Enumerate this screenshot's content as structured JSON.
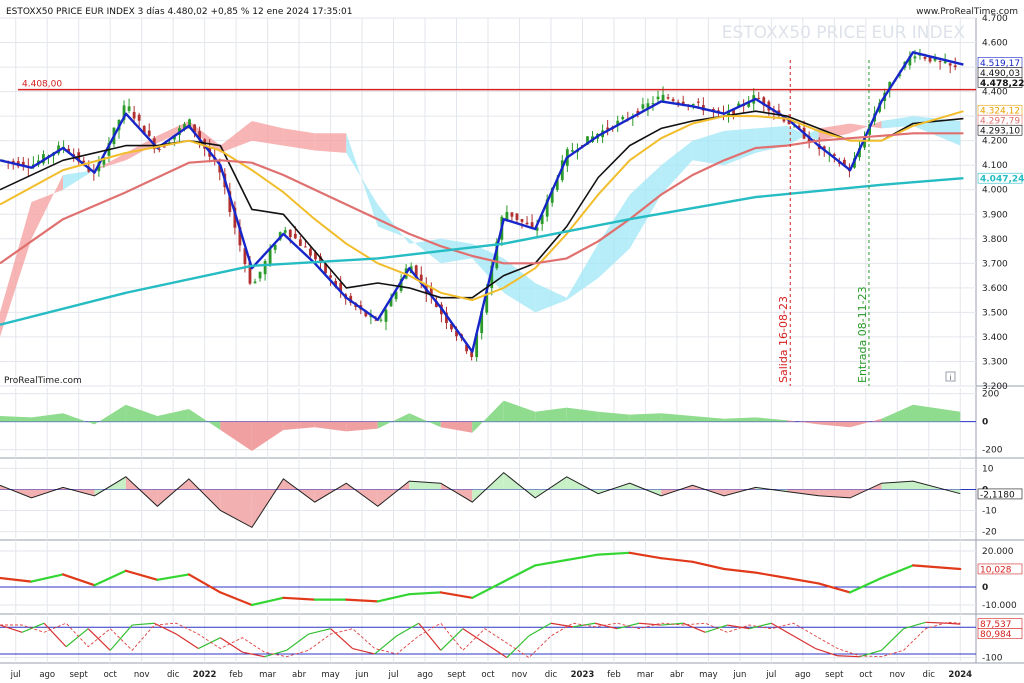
{
  "header": {
    "title": "ESTOXX50 PRICE EUR INDEX 3 días 4.480,02 +0,85 % 12 ene 2024 17:35:01",
    "brand": "www.ProRealTime.com",
    "watermark": "ESTOXX50 PRICE EUR INDEX",
    "chart_brand": "ProRealTime.com"
  },
  "chart_data": [
    {
      "type": "line",
      "pane": "price",
      "ylim": [
        3200,
        4700
      ],
      "y_ticks": [
        "3.200",
        "3.300",
        "3.400",
        "3.500",
        "3.600",
        "3.700",
        "3.800",
        "3.900",
        "4.000",
        "4.100",
        "4.200",
        "4.300",
        "4.400",
        "4.500",
        "4.600",
        "4.700"
      ],
      "y_tick_values": [
        3200,
        3300,
        3400,
        3500,
        3600,
        3700,
        3800,
        3900,
        4000,
        4100,
        4200,
        4300,
        4400,
        4500,
        4600,
        4700
      ],
      "x_range_months": [
        0,
        31
      ],
      "x_ticks": [
        {
          "label": "jul",
          "m": 0.5
        },
        {
          "label": "ago",
          "m": 1.5
        },
        {
          "label": "sept",
          "m": 2.5
        },
        {
          "label": "oct",
          "m": 3.5
        },
        {
          "label": "nov",
          "m": 4.5
        },
        {
          "label": "dic",
          "m": 5.5
        },
        {
          "label": "2022",
          "m": 6.5,
          "bold": true
        },
        {
          "label": "feb",
          "m": 7.5
        },
        {
          "label": "mar",
          "m": 8.5
        },
        {
          "label": "abr",
          "m": 9.5
        },
        {
          "label": "may",
          "m": 10.5
        },
        {
          "label": "jun",
          "m": 11.5
        },
        {
          "label": "jul",
          "m": 12.5
        },
        {
          "label": "ago",
          "m": 13.5
        },
        {
          "label": "sept",
          "m": 14.5
        },
        {
          "label": "oct",
          "m": 15.5
        },
        {
          "label": "nov",
          "m": 16.5
        },
        {
          "label": "dic",
          "m": 17.5
        },
        {
          "label": "2023",
          "m": 18.5,
          "bold": true
        },
        {
          "label": "feb",
          "m": 19.5
        },
        {
          "label": "mar",
          "m": 20.5
        },
        {
          "label": "abr",
          "m": 21.5
        },
        {
          "label": "may",
          "m": 22.5
        },
        {
          "label": "jun",
          "m": 23.5
        },
        {
          "label": "jul",
          "m": 24.5
        },
        {
          "label": "ago",
          "m": 25.5
        },
        {
          "label": "sept",
          "m": 26.5
        },
        {
          "label": "oct",
          "m": 27.5
        },
        {
          "label": "nov",
          "m": 28.5
        },
        {
          "label": "dic",
          "m": 29.5
        },
        {
          "label": "2024",
          "m": 30.5,
          "bold": true
        }
      ],
      "close": {
        "x": [
          0,
          1,
          2,
          3,
          4,
          5,
          6,
          7,
          8,
          9,
          10,
          11,
          12,
          13,
          14,
          15,
          16,
          17,
          18,
          19,
          20,
          21,
          22,
          23,
          24,
          25,
          26,
          27,
          28,
          29,
          30.6
        ],
        "y": [
          4120,
          4100,
          4180,
          4060,
          4350,
          4160,
          4280,
          4060,
          3600,
          3850,
          3720,
          3550,
          3450,
          3700,
          3500,
          3320,
          3920,
          3830,
          4150,
          4230,
          4300,
          4380,
          4350,
          4300,
          4380,
          4280,
          4170,
          4080,
          4380,
          4560,
          4480
        ]
      },
      "series": [
        {
          "name": "blue",
          "color": "#1726c8",
          "x": [
            0,
            1,
            2,
            3,
            4,
            5,
            6,
            7,
            8,
            9,
            10,
            11,
            12,
            13,
            14,
            15,
            16,
            17,
            18,
            19,
            20,
            21,
            22,
            23,
            24,
            25,
            26,
            27,
            28,
            29,
            30.6
          ],
          "y": [
            4120,
            4090,
            4170,
            4070,
            4310,
            4170,
            4260,
            4100,
            3680,
            3820,
            3700,
            3560,
            3470,
            3680,
            3520,
            3340,
            3880,
            3840,
            4130,
            4220,
            4290,
            4360,
            4340,
            4310,
            4370,
            4290,
            4180,
            4080,
            4360,
            4560,
            4510
          ]
        },
        {
          "name": "black",
          "color": "#111111",
          "x": [
            0,
            2,
            4,
            5,
            6,
            7,
            8,
            9,
            10,
            11,
            12,
            13,
            14,
            15,
            16,
            17,
            18,
            19,
            20,
            21,
            22,
            23,
            24,
            25,
            26,
            27,
            28,
            29,
            30.6
          ],
          "y": [
            4000,
            4120,
            4180,
            4180,
            4200,
            4180,
            3920,
            3900,
            3750,
            3600,
            3620,
            3600,
            3560,
            3560,
            3650,
            3700,
            3850,
            4050,
            4180,
            4250,
            4280,
            4300,
            4320,
            4300,
            4250,
            4200,
            4200,
            4270,
            4290
          ]
        },
        {
          "name": "yellow",
          "color": "#f2bd2b",
          "x": [
            0,
            2,
            4,
            6,
            7,
            8,
            9,
            10,
            11,
            12,
            13,
            14,
            15,
            16,
            17,
            18,
            19,
            20,
            21,
            22,
            23,
            24,
            25,
            26,
            27,
            28,
            29,
            30.6
          ],
          "y": [
            3940,
            4080,
            4150,
            4200,
            4160,
            4080,
            3990,
            3880,
            3780,
            3700,
            3650,
            3580,
            3550,
            3600,
            3680,
            3820,
            3980,
            4120,
            4210,
            4270,
            4300,
            4300,
            4290,
            4240,
            4200,
            4200,
            4260,
            4320
          ]
        },
        {
          "name": "salmon",
          "color": "#e07070",
          "x": [
            0,
            2,
            4,
            6,
            7,
            8,
            9,
            10,
            11,
            12,
            13,
            14,
            15,
            16,
            17,
            18,
            19,
            20,
            21,
            22,
            23,
            24,
            25,
            26,
            27,
            28,
            29,
            30.6
          ],
          "y": [
            3700,
            3880,
            3990,
            4110,
            4120,
            4110,
            4060,
            4000,
            3940,
            3880,
            3820,
            3770,
            3730,
            3700,
            3700,
            3720,
            3790,
            3880,
            3980,
            4060,
            4120,
            4170,
            4180,
            4200,
            4210,
            4220,
            4230,
            4230
          ]
        },
        {
          "name": "cyan",
          "color": "#26bcc4",
          "x": [
            0,
            4,
            8,
            12,
            16,
            20,
            24,
            28,
            30.6
          ],
          "y": [
            3450,
            3580,
            3690,
            3720,
            3780,
            3880,
            3970,
            4020,
            4047
          ]
        }
      ],
      "cloud": {
        "x": [
          0,
          1,
          2,
          3,
          4,
          5,
          6,
          7,
          8,
          9,
          10,
          11,
          12,
          13,
          14,
          15,
          16,
          17,
          18,
          19,
          20,
          21,
          22,
          23,
          24,
          25,
          26,
          27,
          28,
          29,
          30.5
        ],
        "span_a": [
          3400,
          3800,
          4060,
          4080,
          4120,
          4190,
          4250,
          4150,
          4200,
          4180,
          4160,
          4150,
          3940,
          3780,
          3800,
          3780,
          3720,
          3620,
          3560,
          3780,
          3980,
          4100,
          4200,
          4240,
          4250,
          4260,
          4200,
          4230,
          4280,
          4300,
          4280
        ],
        "span_b": [
          3500,
          3950,
          4000,
          4080,
          4150,
          4220,
          4280,
          4180,
          4280,
          4250,
          4230,
          4230,
          3850,
          3800,
          3700,
          3720,
          3580,
          3500,
          3550,
          3640,
          3760,
          3980,
          4120,
          4100,
          4150,
          4180,
          4250,
          4270,
          4250,
          4260,
          4180
        ]
      },
      "resistance": {
        "value": 4408,
        "label": "4.408,00"
      },
      "vlines": [
        {
          "m": 25.1,
          "label": "Salida 16-08-23",
          "color": "#d62020"
        },
        {
          "m": 27.6,
          "label": "Entrada 08-11-23",
          "color": "#2a9a2a"
        }
      ],
      "price_tags": [
        {
          "value": 4519,
          "label": "4.519,17",
          "color": "#1726c8",
          "fill": "#ffffff"
        },
        {
          "value": 4490,
          "label": "4.490,03",
          "color": "#111111",
          "fill": "#ffffff"
        },
        {
          "value": 4478,
          "label": "4.478,22",
          "color": "#111111",
          "fill": "#ffffff",
          "bold": true
        },
        {
          "value": 4324,
          "label": "4.324,12",
          "color": "#e8a000",
          "fill": "#ffffff"
        },
        {
          "value": 4297,
          "label": "4.297,79",
          "color": "#e07070",
          "fill": "#ffffff"
        },
        {
          "value": 4293,
          "label": "4.293,10",
          "color": "#111111",
          "fill": "#ffffff"
        },
        {
          "value": 4047,
          "label": "4.047,24",
          "color": "#26bcc4",
          "fill": "#ffffff",
          "bold": true
        }
      ]
    },
    {
      "type": "area",
      "pane": "osc1",
      "ylim": [
        -260,
        240
      ],
      "y_ticks": [
        "200",
        "0",
        "-200"
      ],
      "y_tick_values": [
        200,
        0,
        -200
      ],
      "zero": 0,
      "x": [
        0,
        1,
        2,
        3,
        4,
        5,
        6,
        7,
        8,
        9,
        10,
        11,
        12,
        13,
        14,
        15,
        16,
        17,
        18,
        19,
        20,
        21,
        22,
        23,
        24,
        25,
        26,
        27,
        28,
        29,
        30.5
      ],
      "y": [
        40,
        30,
        60,
        -20,
        120,
        40,
        90,
        -60,
        -210,
        -60,
        -40,
        -70,
        -50,
        60,
        -40,
        -80,
        150,
        70,
        100,
        70,
        50,
        60,
        40,
        20,
        30,
        10,
        -20,
        -40,
        20,
        120,
        70
      ]
    },
    {
      "type": "area",
      "pane": "osc2",
      "ylim": [
        -24,
        14
      ],
      "y_ticks": [
        "10",
        "0",
        "-10",
        "-20"
      ],
      "y_tick_values": [
        10,
        0,
        -10,
        -20
      ],
      "zero": 0,
      "current": {
        "value": -2.118,
        "label": "-2,1180"
      },
      "x": [
        0,
        1,
        2,
        3,
        4,
        5,
        6,
        7,
        8,
        9,
        10,
        11,
        12,
        13,
        14,
        15,
        16,
        17,
        18,
        19,
        20,
        21,
        22,
        23,
        24,
        25,
        26,
        27,
        28,
        29,
        30.5
      ],
      "y": [
        2,
        -4,
        1,
        -3,
        6,
        -8,
        5,
        -10,
        -18,
        5,
        -6,
        3,
        -8,
        4,
        3,
        -6,
        8,
        -4,
        6,
        -2,
        3,
        -3,
        2,
        -3,
        1,
        -1,
        -3,
        -4,
        3,
        4,
        -2
      ]
    },
    {
      "type": "line",
      "pane": "osc3",
      "ylim": [
        -15000,
        25000
      ],
      "y_ticks": [
        "20.000",
        "0",
        "-10.000"
      ],
      "y_tick_values": [
        20000,
        0,
        -10000
      ],
      "zero": 0,
      "current": {
        "value": 10028,
        "label": "10,028"
      },
      "x": [
        0,
        1,
        2,
        3,
        4,
        5,
        6,
        7,
        8,
        9,
        10,
        11,
        12,
        13,
        14,
        15,
        16,
        17,
        18,
        19,
        20,
        21,
        22,
        23,
        24,
        25,
        26,
        27,
        28,
        29,
        30.5
      ],
      "y": [
        5000,
        3000,
        7000,
        1000,
        9000,
        4000,
        7000,
        -3000,
        -10000,
        -6000,
        -7000,
        -7000,
        -8000,
        -4000,
        -3000,
        -6000,
        3000,
        12000,
        15000,
        18000,
        19000,
        16000,
        14000,
        10000,
        8000,
        5000,
        2000,
        -3000,
        5000,
        12000,
        10000
      ]
    },
    {
      "type": "line",
      "pane": "osc4",
      "ylim": [
        -130,
        130
      ],
      "y_ticks": [
        "-100"
      ],
      "y_tick_values": [
        -100
      ],
      "zero": 0,
      "upper": 67.5,
      "lower": -80,
      "current": [
        {
          "value": 87.537,
          "label": "87,537",
          "color": "#d62020"
        },
        {
          "value": 80.984,
          "label": "80,984",
          "color": "#d62020"
        }
      ],
      "x": [
        0,
        0.7,
        1.4,
        2.1,
        2.8,
        3.5,
        4.2,
        4.9,
        5.6,
        6.3,
        7,
        7.7,
        8.4,
        9.1,
        9.8,
        10.5,
        11.2,
        11.9,
        12.6,
        13.3,
        14,
        14.7,
        15.4,
        16.1,
        16.8,
        17.5,
        18.2,
        18.9,
        19.6,
        20.3,
        21,
        21.7,
        22.4,
        23.1,
        23.8,
        24.5,
        25.2,
        25.9,
        26.6,
        27.3,
        28,
        28.7,
        29.4,
        30.1,
        30.5
      ],
      "y": [
        80,
        40,
        90,
        -40,
        60,
        -60,
        80,
        90,
        30,
        -50,
        10,
        -70,
        -95,
        -60,
        30,
        60,
        -50,
        -80,
        20,
        90,
        -60,
        60,
        -20,
        -100,
        20,
        90,
        70,
        90,
        60,
        90,
        80,
        90,
        40,
        80,
        60,
        90,
        20,
        -50,
        -90,
        -95,
        -60,
        60,
        95,
        90,
        85
      ]
    }
  ]
}
